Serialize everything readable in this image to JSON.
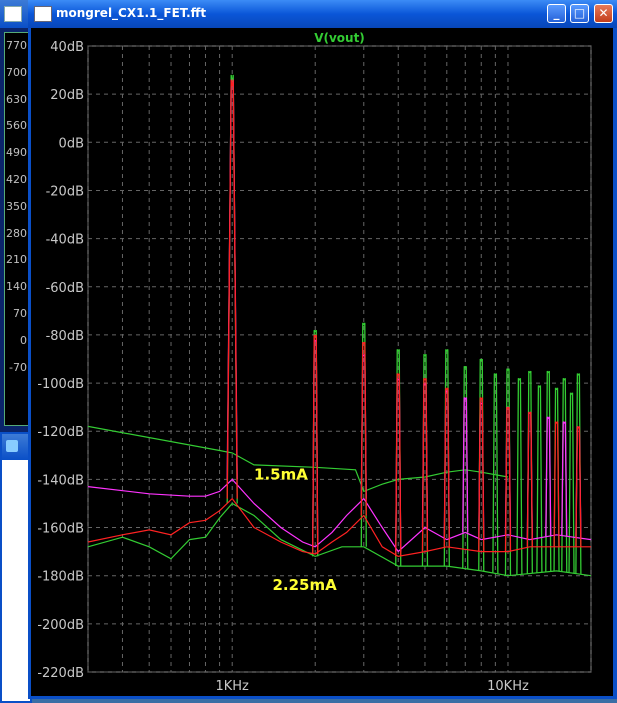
{
  "window": {
    "title": "mongrel_CX1.1_FET.fft",
    "minimize_label": "_",
    "maximize_label": "□",
    "close_label": "✕"
  },
  "background_window": {
    "tick_labels": [
      "770",
      "700",
      "630",
      "560",
      "490",
      "420",
      "350",
      "280",
      "210",
      "140",
      "70",
      "0",
      "-70"
    ]
  },
  "chart_data": {
    "type": "line",
    "title": "",
    "legend": [
      "V(vout)"
    ],
    "xscale": "log",
    "xlim": [
      300,
      20000
    ],
    "ylim": [
      -220,
      40
    ],
    "yticks": [
      40,
      20,
      0,
      -20,
      -40,
      -60,
      -80,
      -100,
      -120,
      -140,
      -160,
      -180,
      -200,
      -220
    ],
    "ytick_labels": [
      "40dB",
      "20dB",
      "0dB",
      "-20dB",
      "-40dB",
      "-60dB",
      "-80dB",
      "-100dB",
      "-120dB",
      "-140dB",
      "-160dB",
      "-180dB",
      "-200dB",
      "-220dB"
    ],
    "xtick_labels": [
      {
        "value": 1000,
        "label": "1KHz"
      },
      {
        "value": 10000,
        "label": "10KHz"
      }
    ],
    "grid": true,
    "annotations": [
      {
        "text": "1.5mA",
        "x": 1200,
        "y": -140,
        "color": "#ffff33"
      },
      {
        "text": "2.25mA",
        "x": 1400,
        "y": -186,
        "color": "#ffff33"
      }
    ],
    "series": [
      {
        "color": "#33cc33",
        "noise_floor": [
          [
            300,
            -118
          ],
          [
            900,
            -128
          ],
          [
            1000,
            -129
          ],
          [
            1200,
            -134
          ],
          [
            2000,
            -135
          ],
          [
            2800,
            -136
          ],
          [
            3000,
            -145
          ],
          [
            3500,
            -142
          ],
          [
            4000,
            -140
          ],
          [
            5000,
            -139
          ],
          [
            6000,
            -137
          ],
          [
            7000,
            -136
          ],
          [
            8000,
            -137
          ],
          [
            10000,
            -139
          ]
        ],
        "noise_floor_low": [
          [
            300,
            -168
          ],
          [
            400,
            -164
          ],
          [
            500,
            -168
          ],
          [
            600,
            -173
          ],
          [
            700,
            -165
          ],
          [
            800,
            -164
          ],
          [
            900,
            -156
          ],
          [
            1000,
            -150
          ],
          [
            1200,
            -155
          ],
          [
            1500,
            -165
          ],
          [
            2000,
            -172
          ],
          [
            2500,
            -168
          ],
          [
            3000,
            -168
          ],
          [
            4000,
            -176
          ],
          [
            6000,
            -176
          ],
          [
            8000,
            -178
          ],
          [
            10000,
            -180
          ],
          [
            15000,
            -178
          ],
          [
            20000,
            -180
          ]
        ],
        "peaks": [
          {
            "f": 1000,
            "db": 22
          },
          {
            "f": 2000,
            "db": -80
          },
          {
            "f": 3000,
            "db": -77
          },
          {
            "f": 4000,
            "db": -88
          },
          {
            "f": 5000,
            "db": -90
          },
          {
            "f": 6000,
            "db": -88
          },
          {
            "f": 7000,
            "db": -95
          },
          {
            "f": 8000,
            "db": -92
          },
          {
            "f": 9000,
            "db": -98
          },
          {
            "f": 10000,
            "db": -96
          },
          {
            "f": 11000,
            "db": -100
          },
          {
            "f": 12000,
            "db": -97
          },
          {
            "f": 13000,
            "db": -103
          },
          {
            "f": 14000,
            "db": -97
          },
          {
            "f": 15000,
            "db": -104
          },
          {
            "f": 16000,
            "db": -100
          },
          {
            "f": 17000,
            "db": -106
          },
          {
            "f": 18000,
            "db": -98
          }
        ]
      },
      {
        "color": "#ff33ff",
        "noise_floor": [
          [
            300,
            -143
          ],
          [
            500,
            -146
          ],
          [
            700,
            -147
          ],
          [
            800,
            -147
          ],
          [
            900,
            -145
          ],
          [
            1000,
            -140
          ],
          [
            1200,
            -150
          ],
          [
            1500,
            -160
          ],
          [
            1800,
            -166
          ],
          [
            2000,
            -168
          ],
          [
            2300,
            -162
          ],
          [
            2600,
            -155
          ],
          [
            3000,
            -148
          ],
          [
            3500,
            -160
          ],
          [
            4000,
            -170
          ],
          [
            5000,
            -160
          ],
          [
            6000,
            -165
          ],
          [
            7000,
            -162
          ],
          [
            8000,
            -165
          ],
          [
            10000,
            -163
          ],
          [
            12000,
            -165
          ],
          [
            15000,
            -163
          ],
          [
            20000,
            -165
          ]
        ],
        "peaks": [
          {
            "f": 1000,
            "db": 20
          },
          {
            "f": 2000,
            "db": -84
          },
          {
            "f": 3000,
            "db": -90
          },
          {
            "f": 4000,
            "db": -100
          },
          {
            "f": 5000,
            "db": -102
          },
          {
            "f": 6000,
            "db": -105
          },
          {
            "f": 7000,
            "db": -108
          },
          {
            "f": 8000,
            "db": -110
          },
          {
            "f": 10000,
            "db": -112
          },
          {
            "f": 12000,
            "db": -114
          },
          {
            "f": 14000,
            "db": -116
          },
          {
            "f": 16000,
            "db": -118
          },
          {
            "f": 18000,
            "db": -120
          }
        ]
      },
      {
        "color": "#ff2222",
        "noise_floor": [
          [
            300,
            -166
          ],
          [
            400,
            -163
          ],
          [
            500,
            -161
          ],
          [
            600,
            -163
          ],
          [
            700,
            -158
          ],
          [
            800,
            -157
          ],
          [
            900,
            -153
          ],
          [
            1000,
            -148
          ],
          [
            1200,
            -160
          ],
          [
            1500,
            -166
          ],
          [
            1800,
            -170
          ],
          [
            2000,
            -171
          ],
          [
            2300,
            -166
          ],
          [
            2600,
            -162
          ],
          [
            3000,
            -155
          ],
          [
            3500,
            -168
          ],
          [
            4000,
            -172
          ],
          [
            5000,
            -170
          ],
          [
            6000,
            -168
          ],
          [
            8000,
            -170
          ],
          [
            10000,
            -170
          ],
          [
            12000,
            -168
          ],
          [
            15000,
            -168
          ],
          [
            20000,
            -168
          ]
        ],
        "peaks": [
          {
            "f": 1000,
            "db": 20
          },
          {
            "f": 2000,
            "db": -82
          },
          {
            "f": 3000,
            "db": -85
          },
          {
            "f": 4000,
            "db": -98
          },
          {
            "f": 5000,
            "db": -100
          },
          {
            "f": 6000,
            "db": -104
          },
          {
            "f": 8000,
            "db": -108
          },
          {
            "f": 10000,
            "db": -112
          },
          {
            "f": 12000,
            "db": -114
          },
          {
            "f": 15000,
            "db": -118
          },
          {
            "f": 18000,
            "db": -120
          }
        ]
      }
    ]
  }
}
